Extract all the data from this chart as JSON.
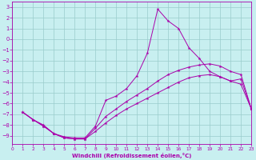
{
  "bg_color": "#c8eff0",
  "line_color": "#aa00aa",
  "grid_color": "#99cccc",
  "xlim": [
    0,
    23
  ],
  "ylim": [
    -9.8,
    3.5
  ],
  "xticks": [
    0,
    1,
    2,
    3,
    4,
    5,
    6,
    7,
    8,
    9,
    10,
    11,
    12,
    13,
    14,
    15,
    16,
    17,
    18,
    19,
    20,
    21,
    22,
    23
  ],
  "yticks": [
    3,
    2,
    1,
    0,
    -1,
    -2,
    -3,
    -4,
    -5,
    -6,
    -7,
    -8,
    -9
  ],
  "xlabel": "Windchill (Refroidissement éolien,°C)",
  "line1_x": [
    1,
    2,
    3,
    4,
    5,
    6,
    7,
    8,
    9,
    10,
    11,
    12,
    13,
    14,
    15,
    16,
    17,
    18,
    19,
    20,
    21,
    22,
    23
  ],
  "line1_y": [
    -6.8,
    -7.5,
    -8.0,
    -8.8,
    -9.1,
    -9.2,
    -9.2,
    -8.1,
    -5.7,
    -5.3,
    -4.6,
    -3.4,
    -1.3,
    2.8,
    1.7,
    1.0,
    -0.8,
    -1.8,
    -3.0,
    -3.5,
    -3.9,
    -3.7,
    -6.5
  ],
  "line2_x": [
    1,
    2,
    3,
    4,
    5,
    6,
    7,
    8,
    9,
    10,
    11,
    12,
    13,
    14,
    15,
    16,
    17,
    18,
    19,
    20,
    21,
    22,
    23
  ],
  "line2_y": [
    -6.8,
    -7.5,
    -8.1,
    -8.8,
    -9.2,
    -9.3,
    -9.3,
    -8.6,
    -7.8,
    -7.1,
    -6.5,
    -6.0,
    -5.5,
    -5.0,
    -4.5,
    -4.0,
    -3.6,
    -3.4,
    -3.3,
    -3.5,
    -3.9,
    -4.2,
    -6.5
  ],
  "line3_x": [
    1,
    2,
    3,
    4,
    5,
    6,
    7,
    8,
    9,
    10,
    11,
    12,
    13,
    14,
    15,
    16,
    17,
    18,
    19,
    20,
    21,
    22,
    23
  ],
  "line3_y": [
    -6.8,
    -7.5,
    -8.1,
    -8.8,
    -9.2,
    -9.3,
    -9.3,
    -8.3,
    -7.2,
    -6.5,
    -5.8,
    -5.2,
    -4.6,
    -3.9,
    -3.3,
    -2.9,
    -2.6,
    -2.4,
    -2.3,
    -2.5,
    -3.0,
    -3.3,
    -6.5
  ]
}
